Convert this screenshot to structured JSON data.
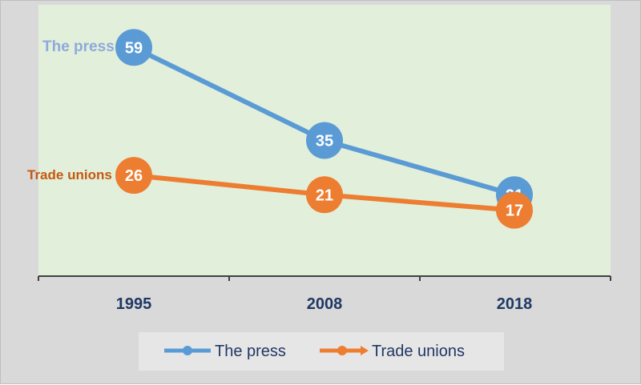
{
  "chart_data": {
    "type": "line",
    "categories": [
      "1995",
      "2008",
      "2018"
    ],
    "series": [
      {
        "name": "The press",
        "values": [
          59,
          35,
          21
        ],
        "color": "#5b9bd5",
        "label_color": "#8eaadb"
      },
      {
        "name": "Trade unions",
        "values": [
          26,
          21,
          17
        ],
        "color": "#ed7d31",
        "label_color": "#c55a11"
      }
    ],
    "ylim": [
      0,
      70
    ],
    "plot_background": "#e2efda",
    "frame_background": "#d9d9d9",
    "axis_color": "#404040",
    "tick_label_color": "#1f3864",
    "grid": false,
    "legend": {
      "position": "bottom",
      "background": "#e7e6e6"
    },
    "xlabel": "",
    "ylabel": ""
  }
}
